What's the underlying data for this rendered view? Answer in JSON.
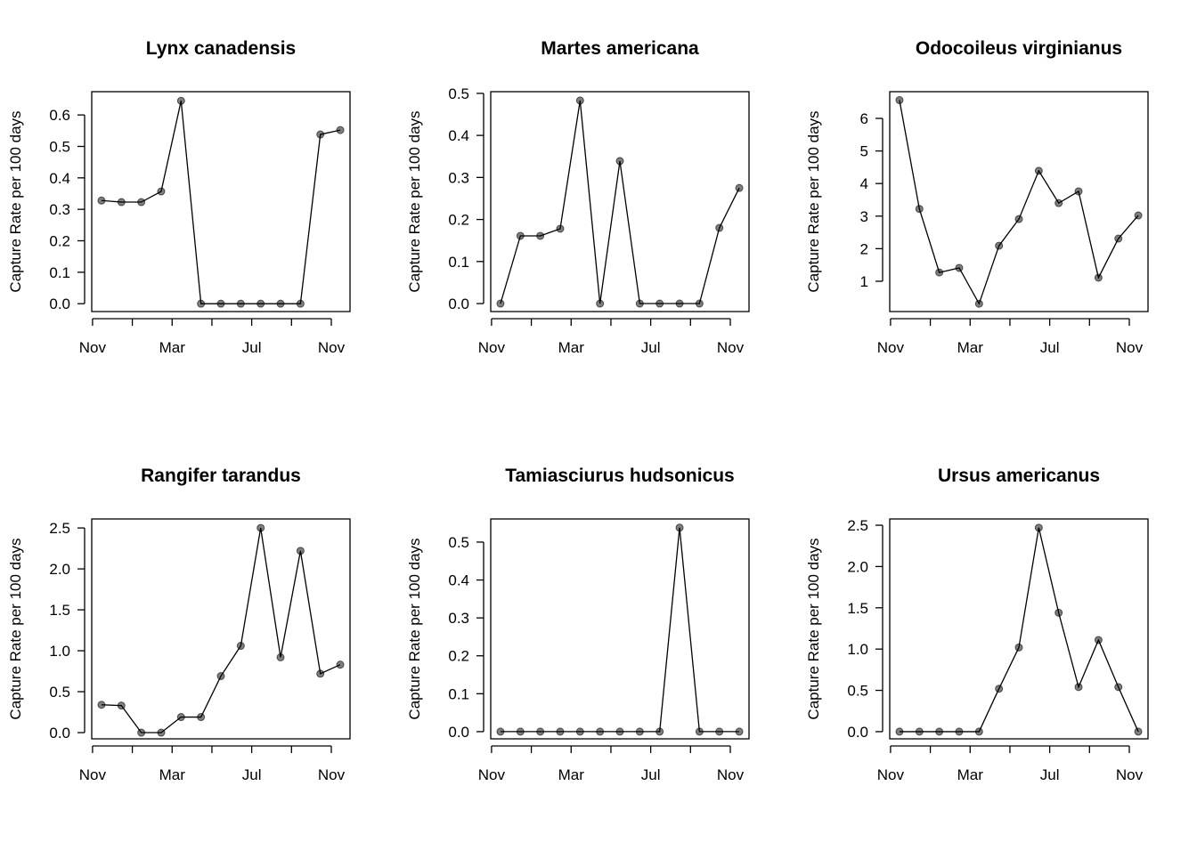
{
  "chart_data": [
    {
      "type": "line",
      "title": "Lynx canadensis",
      "ylabel": "Capture Rate per 100 days",
      "x": [
        0.45,
        1.45,
        2.45,
        3.45,
        4.45,
        5.45,
        6.45,
        7.45,
        8.45,
        9.45,
        10.45,
        11.45,
        12.45
      ],
      "values": [
        0.328,
        0.323,
        0.323,
        0.357,
        0.645,
        0,
        0,
        0,
        0,
        0,
        0,
        0.538,
        0.552
      ],
      "xlim": [
        -0.04,
        12.94
      ],
      "xticks": [
        {
          "value": 0,
          "label": "Nov"
        },
        {
          "value": 2,
          "label": null
        },
        {
          "value": 4,
          "label": "Mar"
        },
        {
          "value": 6,
          "label": null
        },
        {
          "value": 8,
          "label": "Jul"
        },
        {
          "value": 10,
          "label": null
        },
        {
          "value": 12,
          "label": "Nov"
        }
      ],
      "ylim": [
        -0.025,
        0.674
      ],
      "yticks": [
        {
          "value": 0,
          "label": "0.0"
        },
        {
          "value": 0.1,
          "label": "0.1"
        },
        {
          "value": 0.2,
          "label": "0.2"
        },
        {
          "value": 0.3,
          "label": "0.3"
        },
        {
          "value": 0.4,
          "label": "0.4"
        },
        {
          "value": 0.5,
          "label": "0.5"
        },
        {
          "value": 0.6,
          "label": "0.6"
        }
      ]
    },
    {
      "type": "line",
      "title": "Martes americana",
      "ylabel": "Capture Rate per 100 days",
      "x": [
        0.45,
        1.45,
        2.45,
        3.45,
        4.45,
        5.45,
        6.45,
        7.45,
        8.45,
        9.45,
        10.45,
        11.45,
        12.45
      ],
      "values": [
        0,
        0.161,
        0.161,
        0.178,
        0.483,
        0,
        0.339,
        0,
        0,
        0,
        0,
        0.18,
        0.275
      ],
      "xlim": [
        -0.04,
        12.94
      ],
      "xticks": [
        {
          "value": 0,
          "label": "Nov"
        },
        {
          "value": 2,
          "label": null
        },
        {
          "value": 4,
          "label": "Mar"
        },
        {
          "value": 6,
          "label": null
        },
        {
          "value": 8,
          "label": "Jul"
        },
        {
          "value": 10,
          "label": null
        },
        {
          "value": 12,
          "label": "Nov"
        }
      ],
      "ylim": [
        -0.019,
        0.504
      ],
      "yticks": [
        {
          "value": 0,
          "label": "0.0"
        },
        {
          "value": 0.1,
          "label": "0.1"
        },
        {
          "value": 0.2,
          "label": "0.2"
        },
        {
          "value": 0.3,
          "label": "0.3"
        },
        {
          "value": 0.4,
          "label": "0.4"
        },
        {
          "value": 0.5,
          "label": "0.5"
        }
      ]
    },
    {
      "type": "line",
      "title": "Odocoileus virginianus",
      "ylabel": "Capture Rate per 100 days",
      "x": [
        0.45,
        1.45,
        2.45,
        3.45,
        4.45,
        5.45,
        6.45,
        7.45,
        8.45,
        9.45,
        10.45,
        11.45,
        12.45
      ],
      "values": [
        6.56,
        3.22,
        1.27,
        1.41,
        0.31,
        2.09,
        2.91,
        4.39,
        3.4,
        3.76,
        1.11,
        2.31,
        3.02
      ],
      "xlim": [
        -0.04,
        12.94
      ],
      "xticks": [
        {
          "value": 0,
          "label": "Nov"
        },
        {
          "value": 2,
          "label": null
        },
        {
          "value": 4,
          "label": "Mar"
        },
        {
          "value": 6,
          "label": null
        },
        {
          "value": 8,
          "label": "Jul"
        },
        {
          "value": 10,
          "label": null
        },
        {
          "value": 12,
          "label": "Nov"
        }
      ],
      "ylim": [
        0.07,
        6.82
      ],
      "yticks": [
        1,
        2,
        3,
        4,
        5,
        6
      ]
    },
    {
      "type": "line",
      "title": "Rangifer tarandus",
      "ylabel": "Capture Rate per 100 days",
      "x": [
        0.45,
        1.45,
        2.45,
        3.45,
        4.45,
        5.45,
        6.45,
        7.45,
        8.45,
        9.45,
        10.45,
        11.45,
        12.45
      ],
      "values": [
        0.34,
        0.33,
        0,
        0,
        0.19,
        0.19,
        0.69,
        1.06,
        2.5,
        0.92,
        2.22,
        0.72,
        0.83
      ],
      "xlim": [
        -0.04,
        12.94
      ],
      "xticks": [
        {
          "value": 0,
          "label": "Nov"
        },
        {
          "value": 2,
          "label": null
        },
        {
          "value": 4,
          "label": "Mar"
        },
        {
          "value": 6,
          "label": null
        },
        {
          "value": 8,
          "label": "Jul"
        },
        {
          "value": 10,
          "label": null
        },
        {
          "value": 12,
          "label": "Nov"
        }
      ],
      "ylim": [
        -0.076,
        2.61
      ],
      "yticks": [
        {
          "value": 0,
          "label": "0.0"
        },
        {
          "value": 0.5,
          "label": "0.5"
        },
        {
          "value": 1,
          "label": "1.0"
        },
        {
          "value": 1.5,
          "label": "1.5"
        },
        {
          "value": 2,
          "label": "2.0"
        },
        {
          "value": 2.5,
          "label": "2.5"
        }
      ]
    },
    {
      "type": "line",
      "title": "Tamiasciurus hudsonicus",
      "ylabel": "Capture Rate per 100 days",
      "x": [
        0.45,
        1.45,
        2.45,
        3.45,
        4.45,
        5.45,
        6.45,
        7.45,
        8.45,
        9.45,
        10.45,
        11.45,
        12.45
      ],
      "values": [
        0,
        0,
        0,
        0,
        0,
        0,
        0,
        0,
        0,
        0.538,
        0,
        0,
        0
      ],
      "xlim": [
        -0.04,
        12.94
      ],
      "xticks": [
        {
          "value": 0,
          "label": "Nov"
        },
        {
          "value": 2,
          "label": null
        },
        {
          "value": 4,
          "label": "Mar"
        },
        {
          "value": 6,
          "label": null
        },
        {
          "value": 8,
          "label": "Jul"
        },
        {
          "value": 10,
          "label": null
        },
        {
          "value": 12,
          "label": "Nov"
        }
      ],
      "ylim": [
        -0.019,
        0.561
      ],
      "yticks": [
        {
          "value": 0,
          "label": "0.0"
        },
        {
          "value": 0.1,
          "label": "0.1"
        },
        {
          "value": 0.2,
          "label": "0.2"
        },
        {
          "value": 0.3,
          "label": "0.3"
        },
        {
          "value": 0.4,
          "label": "0.4"
        },
        {
          "value": 0.5,
          "label": "0.5"
        }
      ]
    },
    {
      "type": "line",
      "title": "Ursus americanus",
      "ylabel": "Capture Rate per 100 days",
      "x": [
        0.45,
        1.45,
        2.45,
        3.45,
        4.45,
        5.45,
        6.45,
        7.45,
        8.45,
        9.45,
        10.45,
        11.45,
        12.45
      ],
      "values": [
        0,
        0,
        0,
        0,
        0,
        0.52,
        1.02,
        2.47,
        1.44,
        0.54,
        1.11,
        0.54,
        0
      ],
      "xlim": [
        -0.04,
        12.94
      ],
      "xticks": [
        {
          "value": 0,
          "label": "Nov"
        },
        {
          "value": 2,
          "label": null
        },
        {
          "value": 4,
          "label": "Mar"
        },
        {
          "value": 6,
          "label": null
        },
        {
          "value": 8,
          "label": "Jul"
        },
        {
          "value": 10,
          "label": null
        },
        {
          "value": 12,
          "label": "Nov"
        }
      ],
      "ylim": [
        -0.087,
        2.576
      ],
      "yticks": [
        {
          "value": 0,
          "label": "0.0"
        },
        {
          "value": 0.5,
          "label": "0.5"
        },
        {
          "value": 1,
          "label": "1.0"
        },
        {
          "value": 1.5,
          "label": "1.5"
        },
        {
          "value": 2,
          "label": "2.0"
        },
        {
          "value": 2.5,
          "label": "2.5"
        }
      ]
    }
  ]
}
